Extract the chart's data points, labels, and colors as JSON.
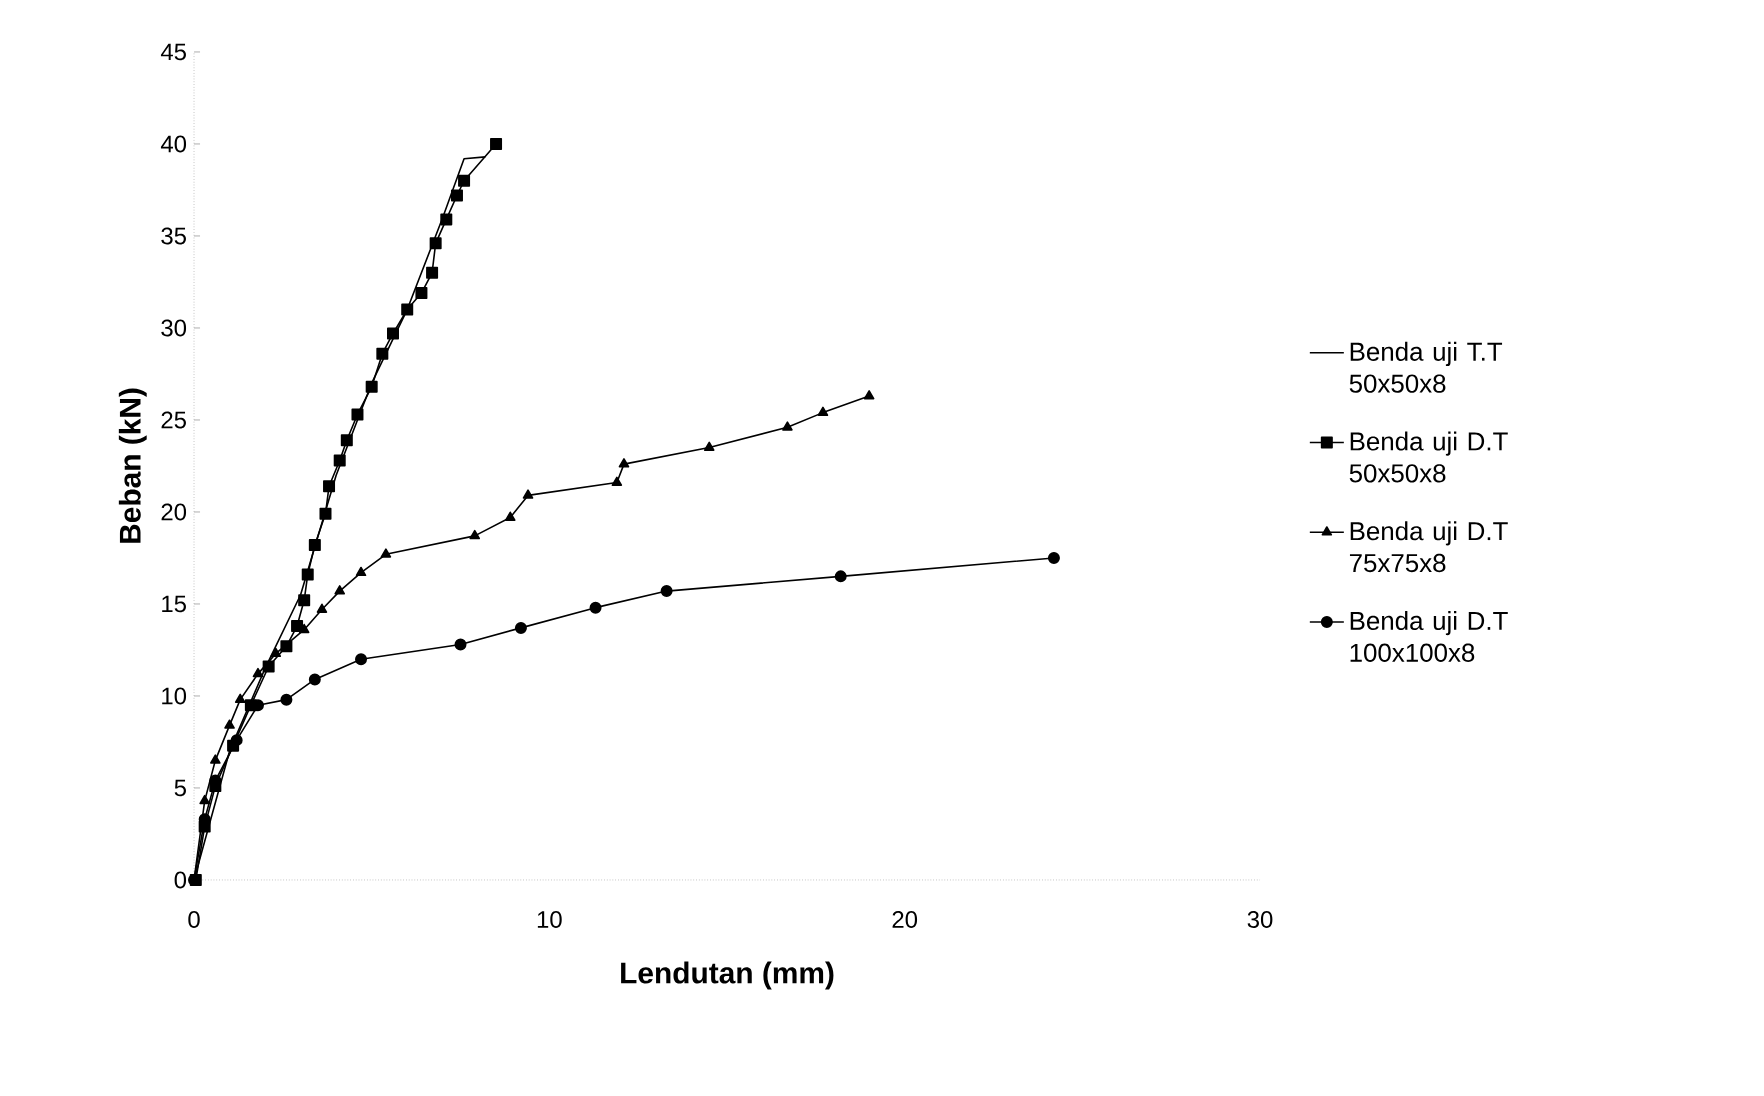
{
  "chart_data": {
    "type": "line",
    "xlabel": "Lendutan (mm)",
    "ylabel": "Beban (kN)",
    "xlim": [
      0,
      30
    ],
    "ylim": [
      0,
      45
    ],
    "xticks": [
      0,
      10,
      20,
      30
    ],
    "yticks": [
      0,
      5,
      10,
      15,
      20,
      25,
      30,
      35,
      40,
      45
    ],
    "grid": false,
    "legend": "right",
    "line_style": "solid",
    "series": [
      {
        "name": "Benda uji T.T 50x50x8",
        "color": "#000000",
        "marker": "none",
        "x": [
          0,
          1,
          2,
          3,
          4,
          5,
          6,
          7,
          7.6,
          8.2
        ],
        "values": [
          0,
          7,
          11.5,
          15.5,
          22,
          27,
          31,
          36,
          39.2,
          39.3
        ]
      },
      {
        "name": "Benda uji D.T 50x50x8",
        "color": "#000000",
        "marker": "square",
        "x": [
          0.05,
          0.3,
          0.6,
          1.1,
          1.6,
          2.1,
          2.6,
          2.9,
          3.1,
          3.2,
          3.4,
          3.7,
          3.8,
          4.1,
          4.3,
          4.6,
          5.0,
          5.3,
          5.6,
          6.0,
          6.4,
          6.7,
          6.8,
          7.1,
          7.4,
          7.6,
          8.5
        ],
        "values": [
          0,
          2.9,
          5.1,
          7.3,
          9.5,
          11.6,
          12.7,
          13.8,
          15.2,
          16.6,
          18.2,
          19.9,
          21.4,
          22.8,
          23.9,
          25.3,
          26.8,
          28.6,
          29.7,
          31,
          31.9,
          33,
          34.6,
          35.9,
          37.2,
          38,
          40
        ]
      },
      {
        "name": "Benda uji D.T 75x75x8",
        "color": "#000000",
        "marker": "triangle",
        "x": [
          0,
          0.3,
          0.6,
          1.0,
          1.3,
          1.8,
          2.3,
          3.1,
          3.6,
          4.1,
          4.7,
          5.4,
          7.9,
          8.9,
          9.4,
          11.9,
          12.1,
          14.5,
          16.7,
          17.7,
          19.0
        ],
        "values": [
          0,
          4.3,
          6.5,
          8.4,
          9.8,
          11.2,
          12.3,
          13.6,
          14.7,
          15.7,
          16.7,
          17.7,
          18.7,
          19.7,
          20.9,
          21.6,
          22.6,
          23.5,
          24.6,
          25.4,
          26.3
        ]
      },
      {
        "name": "Benda uji D.T 100x100x8",
        "color": "#000000",
        "marker": "circle",
        "x": [
          0,
          0.3,
          0.6,
          1.2,
          1.8,
          2.6,
          3.4,
          4.7,
          7.5,
          9.2,
          11.3,
          13.3,
          18.2,
          24.2
        ],
        "values": [
          0,
          3.3,
          5.4,
          7.6,
          9.5,
          9.8,
          10.9,
          12.0,
          12.8,
          13.7,
          14.8,
          15.7,
          16.5,
          17.5
        ]
      }
    ]
  }
}
